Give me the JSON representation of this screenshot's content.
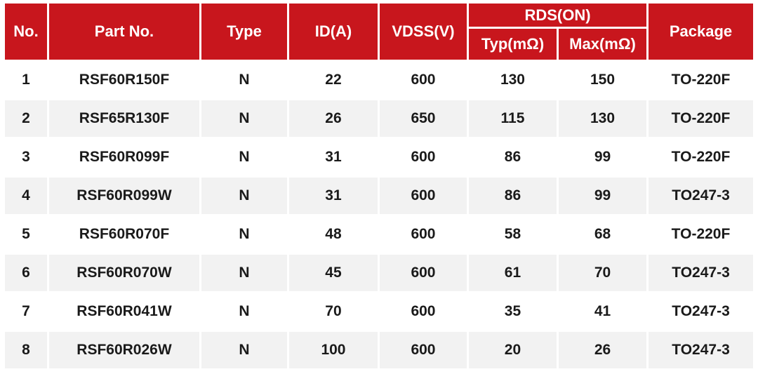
{
  "chart_data": {
    "type": "table",
    "header": {
      "no": "No.",
      "part_no": "Part No.",
      "type": "Type",
      "id_a": "ID(A)",
      "vdss_v": "VDSS(V)",
      "rds_on": "RDS(ON)",
      "typ_mohm": "Typ(mΩ)",
      "max_mohm": "Max(mΩ)",
      "package": "Package"
    },
    "rows": [
      [
        "1",
        "RSF60R150F",
        "N",
        "22",
        "600",
        "130",
        "150",
        "TO-220F"
      ],
      [
        "2",
        "RSF65R130F",
        "N",
        "26",
        "650",
        "115",
        "130",
        "TO-220F"
      ],
      [
        "3",
        "RSF60R099F",
        "N",
        "31",
        "600",
        "86",
        "99",
        "TO-220F"
      ],
      [
        "4",
        "RSF60R099W",
        "N",
        "31",
        "600",
        "86",
        "99",
        "TO247-3"
      ],
      [
        "5",
        "RSF60R070F",
        "N",
        "48",
        "600",
        "58",
        "68",
        "TO-220F"
      ],
      [
        "6",
        "RSF60R070W",
        "N",
        "45",
        "600",
        "61",
        "70",
        "TO247-3"
      ],
      [
        "7",
        "RSF60R041W",
        "N",
        "70",
        "600",
        "35",
        "41",
        "TO247-3"
      ],
      [
        "8",
        "RSF60R026W",
        "N",
        "100",
        "600",
        "20",
        "26",
        "TO247-3"
      ]
    ],
    "column_keys": [
      "no",
      "part_no",
      "type",
      "id_a",
      "vdss_v",
      "typ_mohm",
      "max_mohm",
      "package"
    ]
  },
  "colors": {
    "header_bg": "#C8161D",
    "header_text": "#FFFFFF",
    "body_text": "#1A1A1A",
    "row_alt_bg": "#F2F2F2",
    "border": "#FFFFFF"
  }
}
